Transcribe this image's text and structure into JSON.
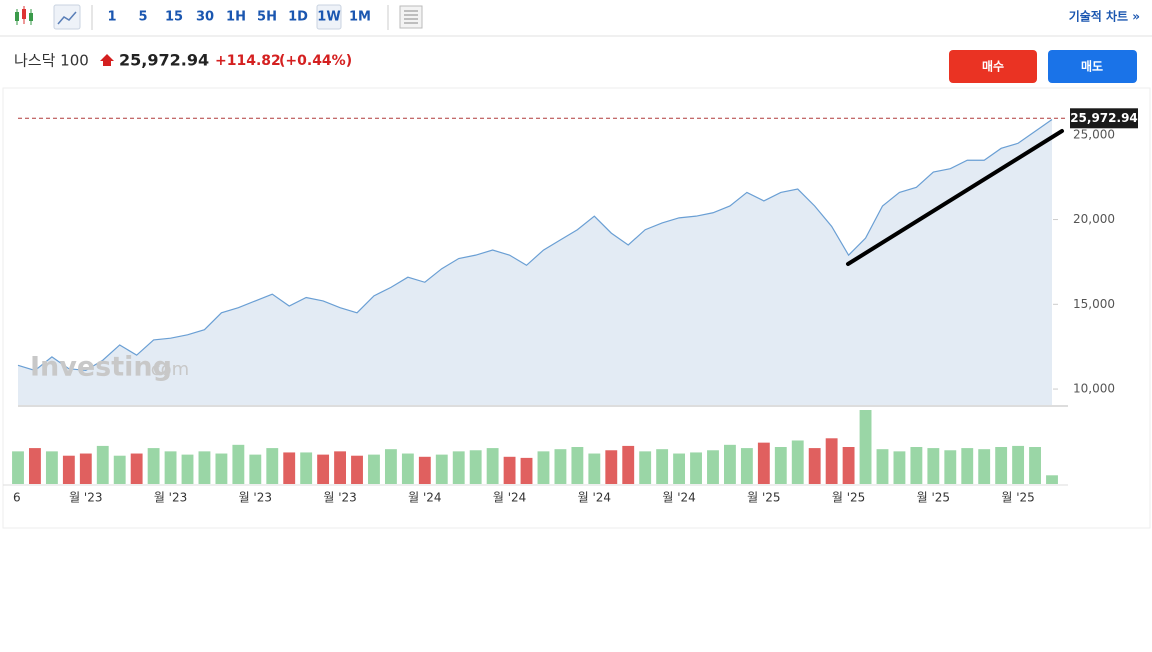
{
  "toolbar": {
    "intervals": [
      "1",
      "5",
      "15",
      "30",
      "1H",
      "5H",
      "1D",
      "1W",
      "1M"
    ],
    "active_interval": "1W",
    "technical_chart": "기술적 차트 »"
  },
  "header": {
    "name": "나스닥 100",
    "price": "25,972.94",
    "change": "+114.82",
    "change_pct": "(+0.44%)"
  },
  "buttons": {
    "buy": "매수",
    "sell": "매도"
  },
  "watermark": {
    "brand": "Investing",
    "suffix": ".com"
  },
  "chart_data": {
    "type": "area",
    "categories": [
      "6",
      null,
      null,
      null,
      "월 '23",
      null,
      null,
      null,
      null,
      "월 '23",
      null,
      null,
      null,
      null,
      "월 '23",
      null,
      null,
      null,
      null,
      "월 '23",
      null,
      null,
      null,
      null,
      "월 '24",
      null,
      null,
      null,
      null,
      "월 '24",
      null,
      null,
      null,
      null,
      "월 '24",
      null,
      null,
      null,
      null,
      "월 '24",
      null,
      null,
      null,
      null,
      "월 '25",
      null,
      null,
      null,
      null,
      "월 '25",
      null,
      null,
      null,
      null,
      "월 '25",
      null,
      null,
      null,
      null,
      "월 '25",
      null,
      null
    ],
    "values": [
      11400,
      11100,
      11900,
      11200,
      11100,
      11700,
      12600,
      12000,
      12900,
      13000,
      13200,
      13500,
      14500,
      14800,
      15200,
      15600,
      14900,
      15400,
      15200,
      14800,
      14500,
      15500,
      16000,
      16600,
      16300,
      17100,
      17700,
      17900,
      18200,
      17900,
      17300,
      18200,
      18800,
      19400,
      20200,
      19200,
      18500,
      19400,
      19800,
      20100,
      20200,
      20400,
      20800,
      21600,
      21100,
      21600,
      21800,
      20800,
      19600,
      17900,
      18900,
      20800,
      21600,
      21900,
      22800,
      23000,
      23500,
      23500,
      24200,
      24500,
      25200,
      25900
    ],
    "color": "#6a9fd4",
    "fill": "#e3ebf4",
    "ylim": [
      9060,
      27760
    ],
    "yticks": [
      {
        "value": 10000,
        "label": "10,000"
      },
      {
        "value": 15000,
        "label": "15,000"
      },
      {
        "value": 20000,
        "label": "20,000"
      },
      {
        "value": 25000,
        "label": "25,000"
      }
    ],
    "last_value": {
      "value": 25972.94,
      "label": "25,972.94"
    },
    "last_line_color": "#b03a3a",
    "volume": [
      30,
      33,
      30,
      26,
      28,
      35,
      26,
      28,
      33,
      30,
      27,
      30,
      28,
      36,
      27,
      33,
      29,
      29,
      27,
      30,
      26,
      27,
      32,
      28,
      25,
      27,
      30,
      31,
      33,
      25,
      24,
      30,
      32,
      34,
      28,
      31,
      35,
      30,
      32,
      28,
      29,
      31,
      36,
      33,
      38,
      34,
      40,
      33,
      42,
      34,
      68,
      32,
      30,
      34,
      33,
      31,
      33,
      32,
      34,
      35,
      34,
      8
    ],
    "up_color": "#9ad6a6",
    "down_color": "#e0605f"
  }
}
